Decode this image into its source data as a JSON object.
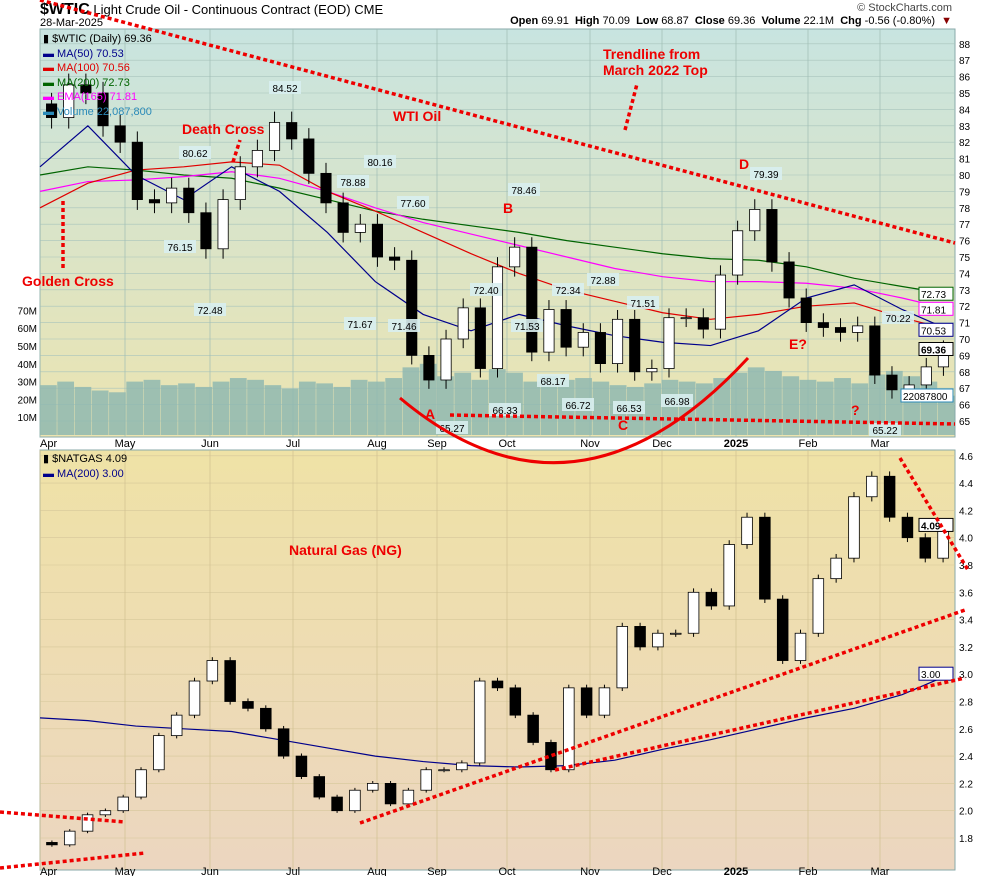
{
  "header": {
    "symbol": "$WTIC",
    "name": "Light Crude Oil - Continuous Contract (EOD)",
    "exchange": "CME",
    "date": "28-Mar-2025",
    "watermark": "© StockCharts.com",
    "ohlc": [
      [
        "Open",
        "69.91"
      ],
      [
        "High",
        "70.09"
      ],
      [
        "Low",
        "68.87"
      ],
      [
        "Close",
        "69.36"
      ],
      [
        "Volume",
        "22.1M"
      ],
      [
        "Chg",
        "-0.56 (-0.80%)"
      ]
    ]
  },
  "colors": {
    "ma50": "#00008b",
    "ma100": "#e00000",
    "ma200": "#006400",
    "ema165": "#ff00ff",
    "volume": "#2a8ab8",
    "annotation": "#ee0000",
    "topBg": "#cde5df",
    "botBg": "#eedfa8"
  },
  "legend_top": [
    {
      "label": "$WTIC (Daily) 69.36",
      "color": "#000"
    },
    {
      "label": "MA(50) 70.53",
      "color": "#00008b"
    },
    {
      "label": "MA(100) 70.56",
      "color": "#e00000"
    },
    {
      "label": "MA(200) 72.73",
      "color": "#006400"
    },
    {
      "label": "EMA(165) 71.81",
      "color": "#ff00ff"
    },
    {
      "label": "Volume 22,087,800",
      "color": "#2a8ab8"
    }
  ],
  "legend_bottom": [
    {
      "label": "$NATGAS 4.09",
      "color": "#000"
    },
    {
      "label": "MA(200) 3.00",
      "color": "#00008b"
    }
  ],
  "annotations": {
    "wti": "WTI Oil",
    "death": "Death Cross",
    "golden": "Golden Cross",
    "trend1": "Trendline from",
    "trend2": "March 2022 Top",
    "A": "A",
    "B": "B",
    "C": "C",
    "D": "D",
    "E": "E?",
    "Q": "?",
    "ng": "Natural Gas (NG)"
  },
  "chart_data": [
    {
      "type": "candlestick",
      "title": "$WTIC (Daily)",
      "x_labels": [
        "Apr",
        "May",
        "Jun",
        "Jul",
        "Aug",
        "Sep",
        "Oct",
        "Nov",
        "Dec",
        "2025",
        "Feb",
        "Mar"
      ],
      "yticks": [
        65,
        66,
        67,
        68,
        69,
        70,
        71,
        72,
        73,
        74,
        75,
        76,
        77,
        78,
        79,
        80,
        81,
        82,
        83,
        84,
        85,
        86,
        87,
        88
      ],
      "ylim": [
        64.3,
        88.6
      ],
      "volume_ticks": [
        "10M",
        "20M",
        "30M",
        "40M",
        "50M",
        "60M",
        "70M"
      ],
      "weekly_close": [
        83.5,
        85.5,
        85,
        83,
        82,
        78.5,
        78.3,
        79.2,
        77.7,
        75.5,
        78.5,
        80.5,
        81.5,
        83.2,
        82.2,
        80.1,
        78.3,
        76.5,
        77,
        75,
        74.8,
        69,
        67.5,
        70,
        71.9,
        68.2,
        74.4,
        75.6,
        69.2,
        71.8,
        69.5,
        70.4,
        68.5,
        71.2,
        68,
        68.2,
        71.3,
        71.3,
        70.6,
        73.9,
        76.6,
        77.9,
        74.7,
        72.5,
        71,
        70.7,
        70.4,
        70.8,
        67.8,
        66.9,
        67.2,
        68.3,
        69.36
      ],
      "weekly_volume_M": [
        28,
        30,
        27,
        25,
        24,
        30,
        31,
        28,
        29,
        27,
        30,
        32,
        31,
        28,
        26,
        30,
        29,
        27,
        31,
        30,
        32,
        38,
        40,
        33,
        35,
        31,
        37,
        35,
        30,
        33,
        31,
        32,
        30,
        28,
        27,
        29,
        31,
        30,
        29,
        32,
        35,
        38,
        36,
        33,
        31,
        30,
        32,
        29,
        34,
        36,
        33,
        30,
        22.1
      ],
      "ma50": [
        80.5,
        83,
        80,
        78.5,
        80.5,
        79,
        76.5,
        73.5,
        71.5,
        70.5,
        71.5,
        70.8,
        70.2,
        69.8,
        69.6,
        70.5,
        72.5,
        73.3,
        71.8,
        70.53
      ],
      "ma100": [
        78,
        79.5,
        80.3,
        80.5,
        80.8,
        80.6,
        79,
        77.8,
        76.5,
        75.2,
        74,
        73,
        72.3,
        71.6,
        71.2,
        71.5,
        72,
        72.2,
        71.3,
        70.56
      ],
      "ma200": [
        80,
        80.5,
        80.3,
        80,
        79.8,
        79.2,
        78.5,
        77.8,
        77.3,
        76.9,
        76.5,
        76,
        75.6,
        75.2,
        74.9,
        74.8,
        74.4,
        73.7,
        73.2,
        72.73
      ],
      "ema165": [
        79,
        79.6,
        79.7,
        79.9,
        80.2,
        79.8,
        79,
        78,
        77.1,
        76.4,
        75.7,
        75,
        74.3,
        73.8,
        73.5,
        73.5,
        73.4,
        73.1,
        72.5,
        71.81
      ],
      "price_labels": [
        "84.52",
        "80.62",
        "76.15",
        "72.48",
        "80.16",
        "78.88",
        "77.60",
        "71.67",
        "71.46",
        "65.27",
        "72.40",
        "66.33",
        "78.46",
        "71.53",
        "72.34",
        "68.17",
        "66.72",
        "72.88",
        "66.53",
        "71.51",
        "66.98",
        "79.39",
        "70.22",
        "65.22"
      ],
      "right_tags": [
        "72.73",
        "71.81",
        "70.53",
        "69.36",
        "22087800"
      ]
    },
    {
      "type": "candlestick",
      "title": "$NATGAS",
      "x_labels": [
        "Apr",
        "May",
        "Jun",
        "Jul",
        "Aug",
        "Sep",
        "Oct",
        "Nov",
        "Dec",
        "2025",
        "Feb",
        "Mar"
      ],
      "yticks": [
        1.8,
        2.0,
        2.2,
        2.4,
        2.6,
        2.8,
        3.0,
        3.2,
        3.4,
        3.6,
        3.8,
        4.0,
        4.2,
        4.4,
        4.6
      ],
      "ylim": [
        1.6,
        4.65
      ],
      "weekly_close": [
        1.75,
        1.85,
        1.97,
        2.0,
        2.1,
        2.3,
        2.55,
        2.7,
        2.95,
        3.1,
        2.8,
        2.75,
        2.6,
        2.4,
        2.25,
        2.1,
        2.0,
        2.15,
        2.2,
        2.05,
        2.15,
        2.3,
        2.3,
        2.35,
        2.95,
        2.9,
        2.7,
        2.5,
        2.3,
        2.9,
        2.7,
        2.9,
        3.35,
        3.2,
        3.3,
        3.3,
        3.6,
        3.5,
        3.95,
        4.15,
        3.55,
        3.1,
        3.3,
        3.7,
        3.85,
        4.3,
        4.45,
        4.15,
        4.0,
        3.85,
        4.09
      ],
      "ma200": [
        2.68,
        2.66,
        2.62,
        2.6,
        2.58,
        2.52,
        2.46,
        2.4,
        2.36,
        2.33,
        2.32,
        2.33,
        2.37,
        2.45,
        2.52,
        2.6,
        2.68,
        2.75,
        2.85,
        3.0
      ],
      "right_tags": [
        "4.09",
        "3.00"
      ]
    }
  ]
}
